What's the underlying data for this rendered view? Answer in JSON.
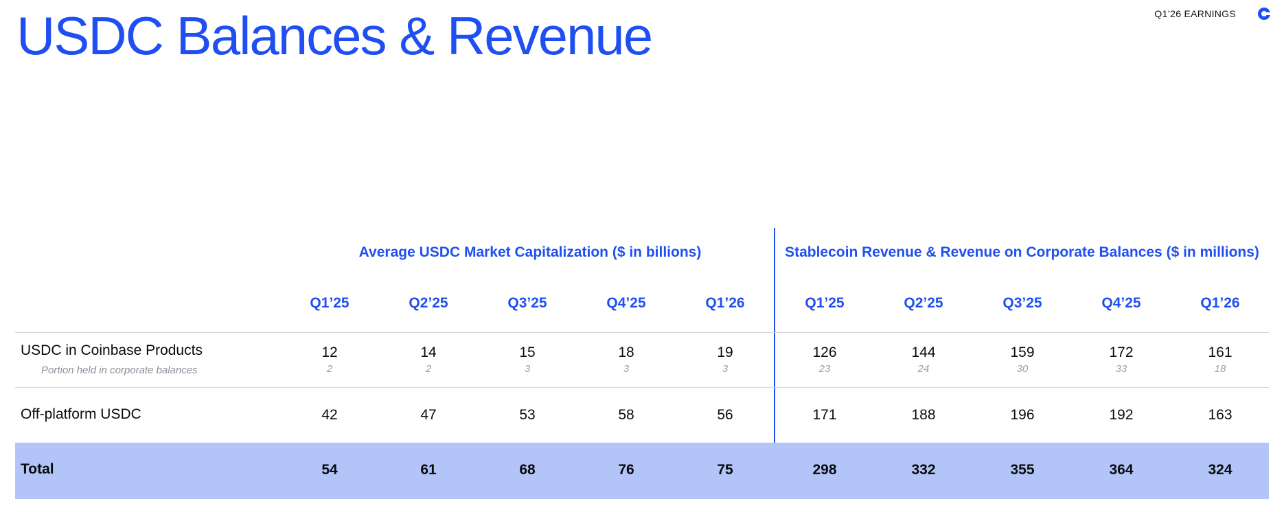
{
  "header": {
    "title": "USDC Balances & Revenue",
    "earnings_label": "Q1’26 EARNINGS",
    "logo_icon": "coinbase-logo-icon"
  },
  "table": {
    "groups": [
      "Average USDC Market Capitalization ($ in billions)",
      "Stablecoin Revenue & Revenue on Corporate Balances ($ in millions)"
    ],
    "quarters": [
      "Q1’25",
      "Q2’25",
      "Q3’25",
      "Q4’25",
      "Q1’26",
      "Q1’25",
      "Q2’25",
      "Q3’25",
      "Q4’25",
      "Q1’26"
    ],
    "rows": [
      {
        "label": "USDC in Coinbase Products",
        "sublabel": "Portion held in corporate balances",
        "values": [
          "12",
          "14",
          "15",
          "18",
          "19",
          "126",
          "144",
          "159",
          "172",
          "161"
        ],
        "subvalues": [
          "2",
          "2",
          "3",
          "3",
          "3",
          "23",
          "24",
          "30",
          "33",
          "18"
        ]
      },
      {
        "label": "Off-platform USDC",
        "values": [
          "42",
          "47",
          "53",
          "58",
          "56",
          "171",
          "188",
          "196",
          "192",
          "163"
        ]
      },
      {
        "label": "Total",
        "values": [
          "54",
          "61",
          "68",
          "76",
          "75",
          "298",
          "332",
          "355",
          "364",
          "324"
        ]
      }
    ]
  },
  "colors": {
    "accent": "#1f4ff0",
    "total_row_bg": "#b3c5f8",
    "sub_text": "#8a8f99"
  }
}
